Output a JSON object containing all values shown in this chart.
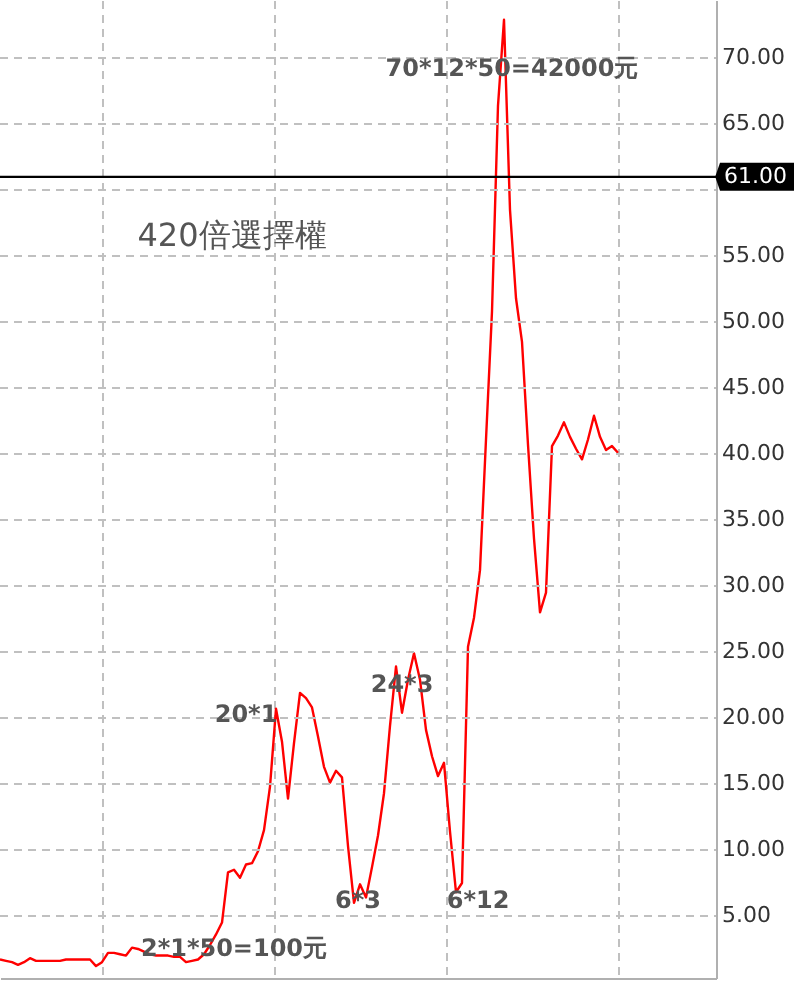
{
  "chart_data": {
    "type": "line",
    "annotations": [
      "70*12*50=42000元",
      "420倍選擇權",
      "20*1",
      "24*3",
      "6*3",
      "6*12",
      "2*1*50=100元"
    ],
    "categories": [
      null,
      null,
      null,
      null,
      null,
      null,
      null,
      null,
      null,
      null,
      null,
      null,
      null,
      null,
      null,
      null,
      null,
      null,
      null,
      null,
      null,
      null,
      null,
      null,
      null,
      null,
      null,
      null,
      null,
      null,
      null,
      null,
      null,
      null,
      null,
      null,
      null,
      null,
      null,
      null,
      null,
      null,
      null,
      null,
      null,
      null,
      null,
      null,
      null,
      null,
      null,
      null,
      null,
      null,
      null,
      null,
      null,
      null,
      null,
      null,
      null,
      null,
      null,
      null,
      null,
      null,
      null,
      null,
      null,
      null,
      null,
      null,
      null,
      null,
      null,
      null,
      null,
      null,
      null,
      null,
      null,
      null,
      null,
      null,
      null,
      null,
      null,
      null,
      null,
      null,
      null,
      null,
      null,
      null,
      null,
      null,
      null,
      null,
      null,
      null,
      null,
      null,
      null,
      null
    ],
    "series": [
      {
        "color": "#ff0000",
        "values": [
          1.7,
          1.6,
          1.5,
          1.3,
          1.5,
          1.8,
          1.6,
          1.6,
          1.6,
          1.6,
          1.6,
          1.7,
          1.7,
          1.7,
          1.7,
          1.7,
          1.2,
          1.5,
          2.2,
          2.2,
          2.1,
          2.0,
          2.6,
          2.5,
          2.3,
          2.1,
          2.0,
          2.0,
          2.0,
          1.9,
          1.9,
          1.5,
          1.6,
          1.7,
          2.1,
          2.8,
          3.6,
          4.5,
          8.3,
          8.5,
          7.9,
          8.9,
          9.0,
          9.9,
          11.5,
          14.8,
          20.7,
          18.2,
          13.9,
          18.1,
          21.9,
          21.5,
          20.8,
          18.6,
          16.3,
          15.1,
          16.0,
          15.5,
          10.3,
          6.0,
          7.4,
          6.4,
          8.7,
          11.1,
          14.3,
          19.4,
          23.9,
          20.4,
          22.9,
          24.9,
          22.9,
          19.1,
          17.1,
          15.6,
          16.6,
          11.4,
          6.8,
          7.5,
          25.4,
          27.6,
          31.2,
          41.1,
          50.8,
          66.4,
          72.9,
          58.5,
          51.8,
          48.5,
          40.7,
          33.6,
          28.0,
          29.5,
          40.6,
          41.4,
          42.4,
          41.3,
          40.4,
          39.6,
          41.1,
          42.9,
          41.3,
          40.3,
          40.6,
          40.1
        ]
      }
    ],
    "ylim": [
      0.3,
      74.4
    ],
    "yticks": [
      {
        "value": 5,
        "label": "5.00"
      },
      {
        "value": 10,
        "label": "10.00"
      },
      {
        "value": 15,
        "label": "15.00"
      },
      {
        "value": 20,
        "label": "20.00"
      },
      {
        "value": 25,
        "label": "25.00"
      },
      {
        "value": 30,
        "label": "30.00"
      },
      {
        "value": 35,
        "label": "35.00"
      },
      {
        "value": 40,
        "label": "40.00"
      },
      {
        "value": 45,
        "label": "45.00"
      },
      {
        "value": 50,
        "label": "50.00"
      },
      {
        "value": 55,
        "label": "55.00"
      },
      {
        "value": 60,
        "label": null
      },
      {
        "value": 65,
        "label": "65.00"
      },
      {
        "value": 70,
        "label": "70.00"
      }
    ],
    "ref_lines": [
      {
        "axis": "y",
        "value": 61,
        "label": "61.00",
        "color": "#000000"
      }
    ],
    "grid": true,
    "tick_labels": "y"
  }
}
